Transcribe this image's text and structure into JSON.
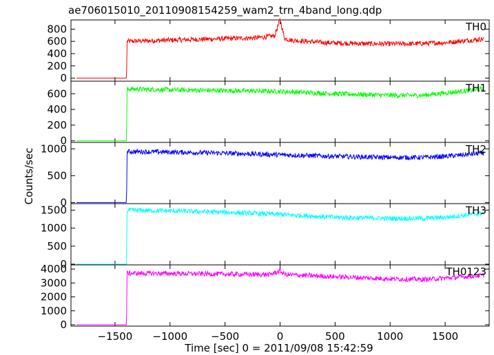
{
  "chart_data": {
    "type": "line",
    "title": "ae706015010_20110908154259_wam2_trn_4band_long.qdp",
    "xlabel": "Time [sec] 0 = 2011/09/08 15:42:59",
    "ylabel": "Counts/sec",
    "xlim": [
      -1900,
      1900
    ],
    "x_ticks": [
      -1500,
      -1000,
      -500,
      0,
      500,
      1000,
      1500
    ],
    "x_tick_labels": [
      "−1500",
      "−1000",
      "−500",
      "0",
      "500",
      "1000",
      "1500"
    ],
    "grid": false,
    "series": [
      {
        "name": "TH0",
        "color": "#ff0000",
        "ylim": [
          -50,
          950
        ],
        "y_ticks": [
          0,
          200,
          400,
          600,
          800
        ],
        "y_tick_labels": [
          "0",
          "200",
          "400",
          "600",
          "800"
        ],
        "x": [
          -1850,
          -1395,
          -1390,
          -1000,
          -600,
          -200,
          -50,
          0,
          40,
          100,
          400,
          800,
          1200,
          1500,
          1850
        ],
        "y": [
          0,
          0,
          600,
          620,
          640,
          660,
          690,
          960,
          650,
          620,
          580,
          560,
          560,
          580,
          640
        ]
      },
      {
        "name": "TH1",
        "color": "#00ff00",
        "ylim": [
          -20,
          760
        ],
        "y_ticks": [
          0,
          200,
          400,
          600
        ],
        "y_tick_labels": [
          "0",
          "200",
          "400",
          "600"
        ],
        "x": [
          -1850,
          -1395,
          -1390,
          -1000,
          -500,
          0,
          500,
          1000,
          1300,
          1500,
          1850
        ],
        "y": [
          0,
          0,
          660,
          650,
          640,
          630,
          600,
          580,
          580,
          610,
          660
        ]
      },
      {
        "name": "TH2",
        "color": "#0000ff",
        "ylim": [
          -20,
          1120
        ],
        "y_ticks": [
          0,
          500,
          1000
        ],
        "y_tick_labels": [
          "0",
          "500",
          "1000"
        ],
        "x": [
          -1850,
          -1395,
          -1390,
          -1000,
          -500,
          0,
          500,
          1000,
          1300,
          1500,
          1850
        ],
        "y": [
          0,
          0,
          950,
          940,
          920,
          890,
          860,
          840,
          840,
          860,
          920
        ]
      },
      {
        "name": "TH3",
        "color": "#00ffff",
        "ylim": [
          -20,
          1680
        ],
        "y_ticks": [
          0,
          500,
          1000,
          1500
        ],
        "y_tick_labels": [
          "0",
          "500",
          "1000",
          "1500"
        ],
        "x": [
          -1850,
          -1395,
          -1390,
          -1000,
          -500,
          0,
          500,
          1000,
          1300,
          1500,
          1850
        ],
        "y": [
          0,
          0,
          1500,
          1480,
          1440,
          1380,
          1300,
          1270,
          1270,
          1300,
          1420
        ]
      },
      {
        "name": "TH0123",
        "color": "#ff00ff",
        "ylim": [
          -100,
          4300
        ],
        "y_ticks": [
          0,
          1000,
          2000,
          3000,
          4000
        ],
        "y_tick_labels": [
          "0",
          "1000",
          "2000",
          "3000",
          "4000"
        ],
        "x": [
          -1850,
          -1395,
          -1390,
          -1000,
          -500,
          -100,
          0,
          50,
          500,
          1000,
          1300,
          1500,
          1850
        ],
        "y": [
          0,
          0,
          3700,
          3680,
          3640,
          3600,
          3850,
          3600,
          3450,
          3300,
          3250,
          3350,
          3550
        ]
      }
    ]
  }
}
